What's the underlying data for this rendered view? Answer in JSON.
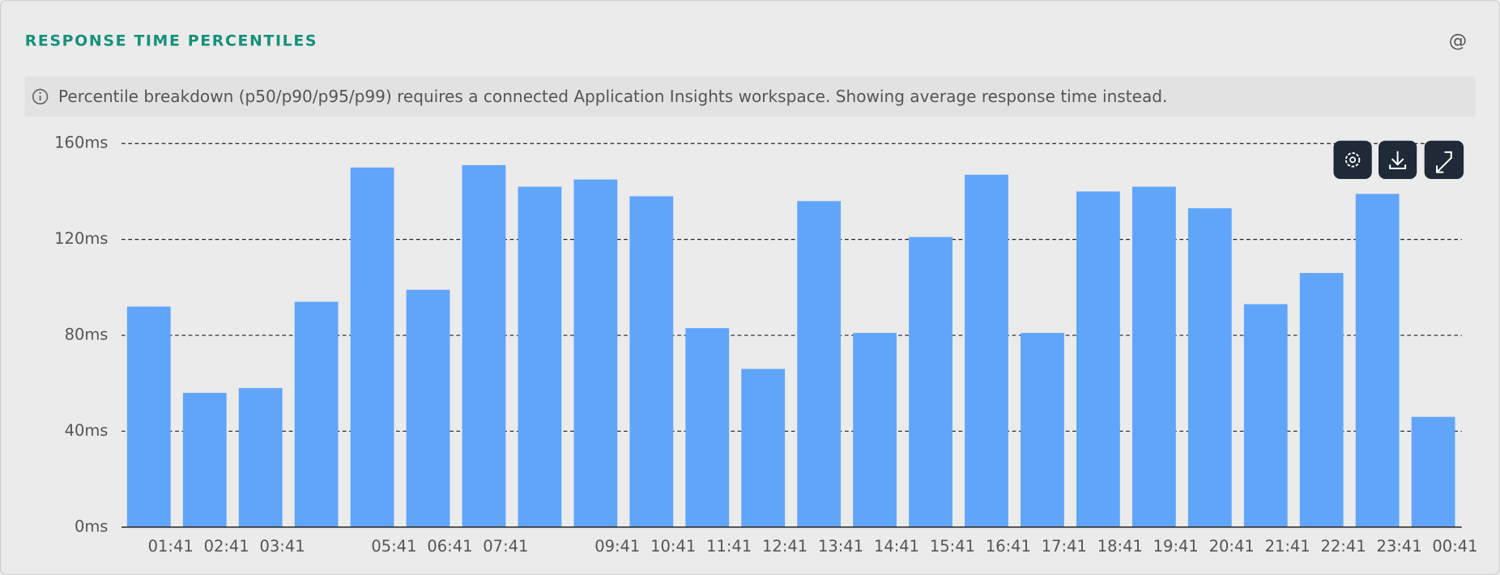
{
  "header": {
    "title": "RESPONSE TIME PERCENTILES",
    "icon": "@"
  },
  "notice": "Percentile breakdown (p50/p90/p95/p99) requires a connected Application Insights workspace. Showing average response time instead.",
  "chart_data": {
    "type": "bar",
    "categories": [
      "01:41",
      "02:41",
      "03:41",
      null,
      "05:41",
      "06:41",
      "07:41",
      null,
      "09:41",
      "10:41",
      "11:41",
      "12:41",
      "13:41",
      "14:41",
      "15:41",
      "16:41",
      "17:41",
      "18:41",
      "19:41",
      "20:41",
      "21:41",
      "22:41",
      "23:41",
      "00:41"
    ],
    "values": [
      92,
      56,
      58,
      94,
      150,
      99,
      151,
      142,
      145,
      138,
      83,
      66,
      136,
      81,
      121,
      147,
      81,
      140,
      142,
      133,
      93,
      106,
      139,
      46
    ],
    "color": "#60a5fa",
    "ylim": [
      0,
      160
    ],
    "yticks": [
      {
        "value": 0,
        "label": "0ms"
      },
      {
        "value": 40,
        "label": "40ms"
      },
      {
        "value": 80,
        "label": "80ms"
      },
      {
        "value": 120,
        "label": "120ms"
      },
      {
        "value": 160,
        "label": "160ms"
      }
    ],
    "grid": true
  }
}
